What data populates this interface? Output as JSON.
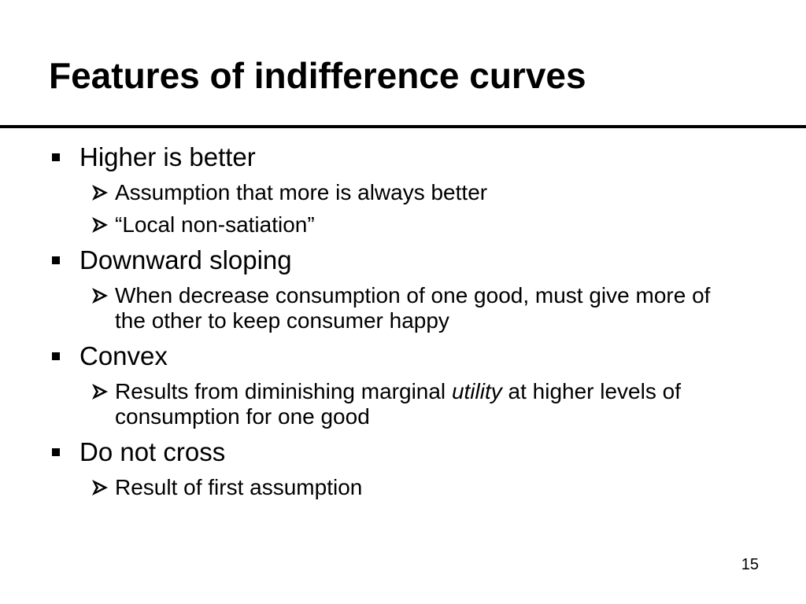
{
  "title": "Features of indifference curves",
  "items": [
    {
      "text": "Higher is better",
      "sub": [
        {
          "runs": [
            {
              "text": "Assumption that more is always better",
              "italic": false
            }
          ]
        },
        {
          "runs": [
            {
              "text": "“Local non-satiation”",
              "italic": false
            }
          ]
        }
      ]
    },
    {
      "text": "Downward sloping",
      "sub": [
        {
          "runs": [
            {
              "text": "When decrease consumption of one good, must give more of the other to keep consumer happy",
              "italic": false
            }
          ]
        }
      ]
    },
    {
      "text": "Convex",
      "sub": [
        {
          "runs": [
            {
              "text": "Results from diminishing marginal ",
              "italic": false
            },
            {
              "text": "utility",
              "italic": true
            },
            {
              "text": " at higher levels of consumption for one good",
              "italic": false
            }
          ]
        }
      ]
    },
    {
      "text": "Do not cross",
      "sub": [
        {
          "runs": [
            {
              "text": "Result of first assumption",
              "italic": false
            }
          ]
        }
      ]
    }
  ],
  "page_number": "15"
}
